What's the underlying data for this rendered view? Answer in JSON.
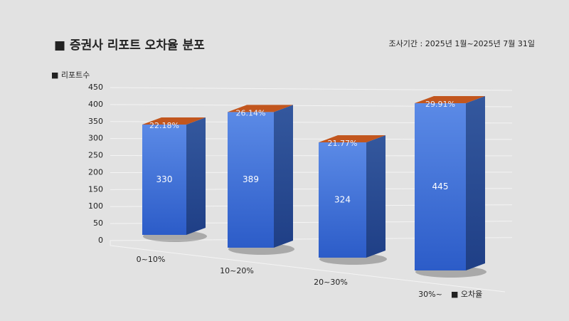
{
  "chart_data": {
    "type": "bar3d",
    "title": "■ 증권사 리포트 오차율 분포",
    "subtitle": "조사기간 : 2025년 1월~2025년 7월 31일",
    "y_label": "■ 리포트수",
    "x_label": "■ 오차율",
    "categories": [
      "0~10%",
      "10~20%",
      "20~30%",
      "30%~"
    ],
    "series": [
      {
        "color": "#3a6fd6",
        "values": [
          330,
          389,
          324,
          445
        ]
      },
      {
        "color": "#c2561e",
        "values": [
          22.18,
          26.14,
          21.77,
          29.91
        ],
        "value_labels": [
          "22.18%",
          "26.14%",
          "21.77%",
          "29.91%"
        ]
      }
    ],
    "ylim": [
      0,
      450
    ],
    "yticks": [
      0,
      50,
      100,
      150,
      200,
      250,
      300,
      350,
      400,
      450
    ],
    "grid": true
  }
}
